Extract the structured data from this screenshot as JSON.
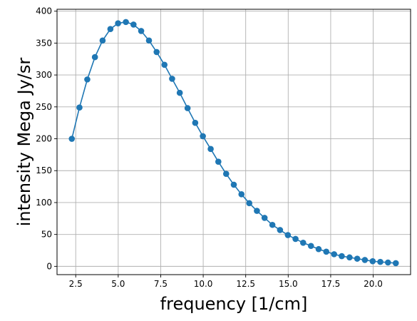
{
  "chart_data": {
    "type": "line",
    "title": "",
    "xlabel": "frequency [1/cm]",
    "ylabel": "intensity Mega Jy/sr",
    "xlim": [
      1.4,
      22.2
    ],
    "ylim": [
      -13,
      403
    ],
    "x_ticks": [
      2.5,
      5.0,
      7.5,
      10.0,
      12.5,
      15.0,
      17.5,
      20.0
    ],
    "x_tick_labels": [
      "2.5",
      "5.0",
      "7.5",
      "10.0",
      "12.5",
      "15.0",
      "17.5",
      "20.0"
    ],
    "y_ticks": [
      0,
      50,
      100,
      150,
      200,
      250,
      300,
      350,
      400
    ],
    "y_tick_labels": [
      "0",
      "50",
      "100",
      "150",
      "200",
      "250",
      "300",
      "350",
      "400"
    ],
    "grid": true,
    "series": [
      {
        "color": "#1f77b4",
        "marker": "circle",
        "x": [
          2.27,
          2.72,
          3.18,
          3.63,
          4.08,
          4.54,
          4.99,
          5.45,
          5.9,
          6.35,
          6.81,
          7.26,
          7.72,
          8.17,
          8.62,
          9.08,
          9.53,
          9.98,
          10.44,
          10.89,
          11.35,
          11.8,
          12.25,
          12.71,
          13.16,
          13.61,
          14.07,
          14.52,
          14.98,
          15.43,
          15.88,
          16.34,
          16.79,
          17.24,
          17.7,
          18.15,
          18.61,
          19.06,
          19.51,
          19.97,
          20.42,
          20.87,
          21.33
        ],
        "y": [
          200,
          249,
          293,
          328,
          354,
          372,
          381,
          383,
          379,
          369,
          354,
          336,
          316,
          294,
          272,
          248,
          225,
          204,
          184,
          164,
          145,
          128,
          113,
          99,
          87,
          76,
          65,
          57,
          49,
          43,
          37,
          32,
          27,
          23,
          19,
          16,
          14,
          12,
          10,
          8,
          7,
          6,
          5
        ]
      }
    ]
  }
}
